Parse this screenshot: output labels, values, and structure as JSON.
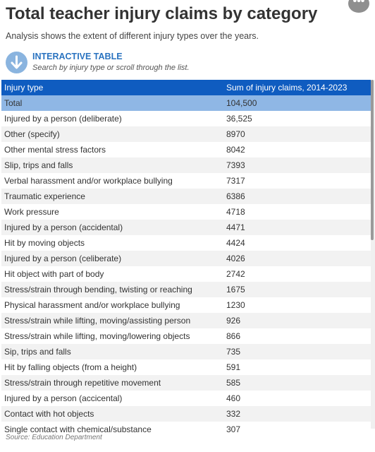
{
  "title": "Total teacher injury claims by category",
  "subtitle": "Analysis shows the extent of different injury types over the years.",
  "more_button": "•••",
  "interactive": {
    "heading": "INTERACTIVE TABLE",
    "hint": "Search by injury type or scroll through the list.",
    "icon": "arrow-down-icon"
  },
  "table": {
    "columns": [
      "Injury type",
      "Sum of injury claims, 2014-2023"
    ],
    "rows": [
      [
        "Total",
        "104,500"
      ],
      [
        "Injured by a person (deliberate)",
        "36,525"
      ],
      [
        "Other (specify)",
        "8970"
      ],
      [
        "Other mental stress factors",
        "8042"
      ],
      [
        "Slip, trips and falls",
        "7393"
      ],
      [
        "Verbal harassment and/or workplace bullying",
        "7317"
      ],
      [
        "Traumatic experience",
        "6386"
      ],
      [
        "Work pressure",
        "4718"
      ],
      [
        "Injured by a person (accidental)",
        "4471"
      ],
      [
        "Hit by moving objects",
        "4424"
      ],
      [
        "Injured by a person (celiberate)",
        "4026"
      ],
      [
        "Hit object with part of body",
        "2742"
      ],
      [
        "Stress/strain through bending, twisting or reaching",
        "1675"
      ],
      [
        "Physical harassment and/or workplace bullying",
        "1230"
      ],
      [
        "Stress/strain while lifting, moving/assisting person",
        "926"
      ],
      [
        "Stress/strain while lifting, moving/lowering objects",
        "866"
      ],
      [
        "Sip, trips and falls",
        "735"
      ],
      [
        "Hit by falling objects (from a height)",
        "591"
      ],
      [
        "Stress/strain through repetitive movement",
        "585"
      ],
      [
        "Injured by a person (accicental)",
        "460"
      ],
      [
        "Contact with hot objects",
        "332"
      ],
      [
        "Single contact with chemical/substance",
        "307"
      ]
    ]
  },
  "scrollbar": {
    "visible_fraction": 0.46
  },
  "source": "Source: Education Department",
  "colors": {
    "header": "#0f5cc0",
    "total_row": "#8fb7e5",
    "accent": "#2a73c0"
  }
}
